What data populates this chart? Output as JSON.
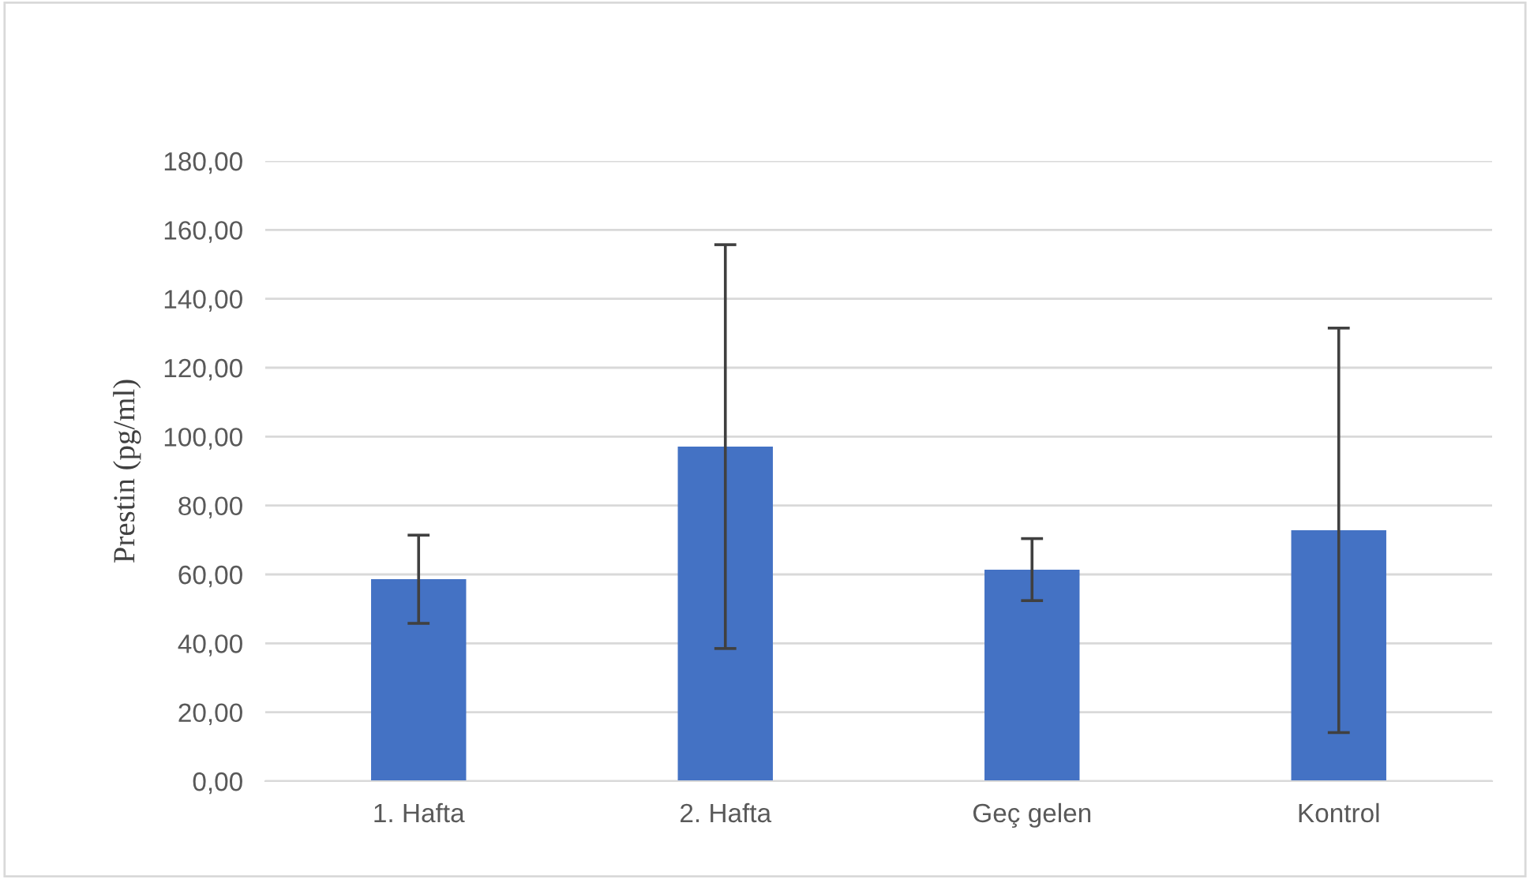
{
  "chart_data": {
    "type": "bar",
    "ylabel": "Prestin (pg/ml)",
    "categories": [
      "1. Hafta",
      "2. Hafta",
      "Geç gelen",
      "Kontrol"
    ],
    "values": [
      58.6,
      97.1,
      61.4,
      72.8
    ],
    "errors": [
      12.8,
      58.6,
      9.0,
      58.7
    ],
    "color": "#4472c4",
    "ylim": [
      0,
      180
    ],
    "yticks": [
      {
        "value": 0,
        "label": "0,00"
      },
      {
        "value": 20,
        "label": "20,00"
      },
      {
        "value": 40,
        "label": "40,00"
      },
      {
        "value": 60,
        "label": "60,00"
      },
      {
        "value": 80,
        "label": "80,00"
      },
      {
        "value": 100,
        "label": "100,00"
      },
      {
        "value": 120,
        "label": "120,00"
      },
      {
        "value": 140,
        "label": "140,00"
      },
      {
        "value": 160,
        "label": "160,00"
      },
      {
        "value": 180,
        "label": "180,00"
      }
    ],
    "grid": "y"
  }
}
